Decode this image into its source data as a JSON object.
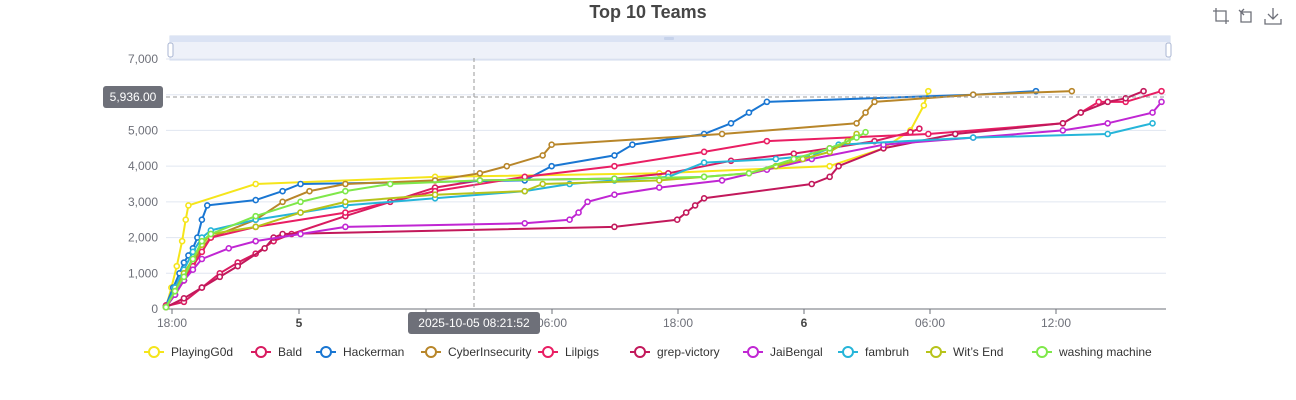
{
  "chart_data": {
    "type": "line",
    "title": "Top 10 Teams",
    "xlabel": "",
    "ylabel": "",
    "x_ticks": [
      "18:00",
      "5",
      "06:00",
      "18:00",
      "6",
      "06:00",
      "12:00"
    ],
    "ylim": [
      0,
      7000
    ],
    "y_ticks": [
      "0",
      "1,000",
      "2,000",
      "3,000",
      "4,000",
      "5,000",
      "6,000",
      "7,000"
    ],
    "grid": true,
    "legend_position": "bottom",
    "y_pointer_label": "5,936.00",
    "x_pointer_label": "2025-10-05 08:21:52",
    "series": [
      {
        "name": "PlayingG0d",
        "color": "#f5e51b",
        "points": [
          [
            0,
            50
          ],
          [
            0.6,
            600
          ],
          [
            1.2,
            1200
          ],
          [
            1.8,
            1900
          ],
          [
            2.2,
            2500
          ],
          [
            2.5,
            2900
          ],
          [
            10,
            3500
          ],
          [
            30,
            3700
          ],
          [
            55,
            3800
          ],
          [
            74,
            4000
          ],
          [
            80,
            4500
          ],
          [
            83,
            5000
          ],
          [
            84.5,
            5700
          ],
          [
            85,
            6100
          ]
        ]
      },
      {
        "name": "Bald",
        "color": "#d81b60",
        "points": [
          [
            0,
            80
          ],
          [
            2,
            200
          ],
          [
            4,
            600
          ],
          [
            6,
            1000
          ],
          [
            8,
            1300
          ],
          [
            10,
            1550
          ],
          [
            12,
            1900
          ],
          [
            14,
            2100
          ],
          [
            20,
            2600
          ],
          [
            25,
            3000
          ],
          [
            30,
            3400
          ],
          [
            35,
            3600
          ],
          [
            50,
            3650
          ],
          [
            56,
            3800
          ],
          [
            63,
            4150
          ],
          [
            70,
            4350
          ],
          [
            74,
            4500
          ],
          [
            79,
            4700
          ],
          [
            83,
            4950
          ],
          [
            84,
            5050
          ]
        ]
      },
      {
        "name": "Hackerman",
        "color": "#1976d2",
        "points": [
          [
            0,
            100
          ],
          [
            0.8,
            600
          ],
          [
            1.5,
            1000
          ],
          [
            2,
            1300
          ],
          [
            2.5,
            1500
          ],
          [
            3,
            1700
          ],
          [
            3.5,
            2000
          ],
          [
            4,
            2500
          ],
          [
            4.6,
            2900
          ],
          [
            10,
            3050
          ],
          [
            13,
            3300
          ],
          [
            15,
            3500
          ],
          [
            40,
            3600
          ],
          [
            43,
            4000
          ],
          [
            50,
            4300
          ],
          [
            52,
            4600
          ],
          [
            60,
            4900
          ],
          [
            63,
            5200
          ],
          [
            65,
            5500
          ],
          [
            67,
            5800
          ],
          [
            90,
            6000
          ],
          [
            97,
            6100
          ]
        ]
      },
      {
        "name": "CyberInsecurity",
        "color": "#b8862a",
        "points": [
          [
            0,
            50
          ],
          [
            1,
            400
          ],
          [
            2,
            800
          ],
          [
            3,
            1300
          ],
          [
            4,
            1700
          ],
          [
            5,
            2000
          ],
          [
            10,
            2500
          ],
          [
            13,
            3000
          ],
          [
            16,
            3300
          ],
          [
            20,
            3500
          ],
          [
            30,
            3600
          ],
          [
            35,
            3800
          ],
          [
            38,
            4000
          ],
          [
            42,
            4300
          ],
          [
            43,
            4600
          ],
          [
            62,
            4900
          ],
          [
            77,
            5200
          ],
          [
            78,
            5500
          ],
          [
            79,
            5800
          ],
          [
            90,
            6000
          ],
          [
            101,
            6100
          ]
        ]
      },
      {
        "name": "Lilpigs",
        "color": "#e91e63",
        "points": [
          [
            0,
            100
          ],
          [
            1,
            400
          ],
          [
            2,
            800
          ],
          [
            3,
            1200
          ],
          [
            4,
            1600
          ],
          [
            5,
            2000
          ],
          [
            10,
            2300
          ],
          [
            20,
            2700
          ],
          [
            30,
            3300
          ],
          [
            40,
            3700
          ],
          [
            50,
            4000
          ],
          [
            60,
            4400
          ],
          [
            67,
            4700
          ],
          [
            85,
            4900
          ],
          [
            100,
            5200
          ],
          [
            102,
            5500
          ],
          [
            104,
            5800
          ],
          [
            107,
            5800
          ],
          [
            111,
            6100
          ]
        ]
      },
      {
        "name": "grep-victory",
        "color": "#c2185b",
        "points": [
          [
            0,
            50
          ],
          [
            2,
            300
          ],
          [
            4,
            600
          ],
          [
            6,
            900
          ],
          [
            8,
            1200
          ],
          [
            11,
            1700
          ],
          [
            12,
            2000
          ],
          [
            13,
            2100
          ],
          [
            50,
            2300
          ],
          [
            57,
            2500
          ],
          [
            58,
            2700
          ],
          [
            59,
            2900
          ],
          [
            60,
            3100
          ],
          [
            72,
            3500
          ],
          [
            74,
            3700
          ],
          [
            75,
            4000
          ],
          [
            80,
            4500
          ],
          [
            88,
            4900
          ],
          [
            100,
            5200
          ],
          [
            102,
            5500
          ],
          [
            105,
            5800
          ],
          [
            107,
            5900
          ],
          [
            109,
            6100
          ]
        ]
      },
      {
        "name": "JaiBengal",
        "color": "#c026d3",
        "points": [
          [
            0,
            50
          ],
          [
            1,
            400
          ],
          [
            2,
            800
          ],
          [
            3,
            1100
          ],
          [
            4,
            1400
          ],
          [
            7,
            1700
          ],
          [
            10,
            1900
          ],
          [
            15,
            2100
          ],
          [
            20,
            2300
          ],
          [
            40,
            2400
          ],
          [
            45,
            2500
          ],
          [
            46,
            2700
          ],
          [
            47,
            3000
          ],
          [
            50,
            3200
          ],
          [
            55,
            3400
          ],
          [
            62,
            3600
          ],
          [
            67,
            3900
          ],
          [
            72,
            4200
          ],
          [
            80,
            4600
          ],
          [
            90,
            4800
          ],
          [
            100,
            5000
          ],
          [
            105,
            5200
          ],
          [
            110,
            5500
          ],
          [
            111,
            5800
          ]
        ]
      },
      {
        "name": "fambruh",
        "color": "#26b5d9",
        "points": [
          [
            0,
            50
          ],
          [
            1,
            600
          ],
          [
            2,
            1100
          ],
          [
            3,
            1600
          ],
          [
            4,
            2000
          ],
          [
            5,
            2200
          ],
          [
            10,
            2500
          ],
          [
            15,
            2700
          ],
          [
            20,
            2900
          ],
          [
            30,
            3100
          ],
          [
            40,
            3300
          ],
          [
            45,
            3500
          ],
          [
            50,
            3600
          ],
          [
            56,
            3700
          ],
          [
            60,
            4100
          ],
          [
            68,
            4200
          ],
          [
            72,
            4300
          ],
          [
            75,
            4600
          ],
          [
            90,
            4800
          ],
          [
            105,
            4900
          ],
          [
            110,
            5200
          ]
        ]
      },
      {
        "name": "Wit’s End",
        "color": "#b7c31a",
        "points": [
          [
            0,
            50
          ],
          [
            1,
            500
          ],
          [
            2,
            1000
          ],
          [
            3,
            1400
          ],
          [
            4,
            1800
          ],
          [
            5,
            2100
          ],
          [
            10,
            2300
          ],
          [
            15,
            2700
          ],
          [
            20,
            3000
          ],
          [
            30,
            3200
          ],
          [
            40,
            3300
          ],
          [
            42,
            3500
          ],
          [
            55,
            3600
          ],
          [
            60,
            3700
          ],
          [
            65,
            3800
          ],
          [
            68,
            4000
          ],
          [
            71,
            4200
          ],
          [
            74,
            4400
          ],
          [
            76,
            4700
          ],
          [
            77,
            4900
          ]
        ]
      },
      {
        "name": "washing machine",
        "color": "#7fe84a",
        "points": [
          [
            0,
            50
          ],
          [
            1,
            500
          ],
          [
            2,
            900
          ],
          [
            3,
            1400
          ],
          [
            4,
            1900
          ],
          [
            5,
            2100
          ],
          [
            10,
            2600
          ],
          [
            15,
            3000
          ],
          [
            20,
            3300
          ],
          [
            25,
            3500
          ],
          [
            35,
            3600
          ],
          [
            50,
            3650
          ],
          [
            60,
            3700
          ],
          [
            65,
            3800
          ],
          [
            70,
            4200
          ],
          [
            74,
            4500
          ],
          [
            77,
            4800
          ],
          [
            78,
            4950
          ]
        ]
      }
    ]
  },
  "toolbox": {
    "icons": [
      "zoom-icon",
      "zoom-reset-icon",
      "download-icon"
    ]
  }
}
